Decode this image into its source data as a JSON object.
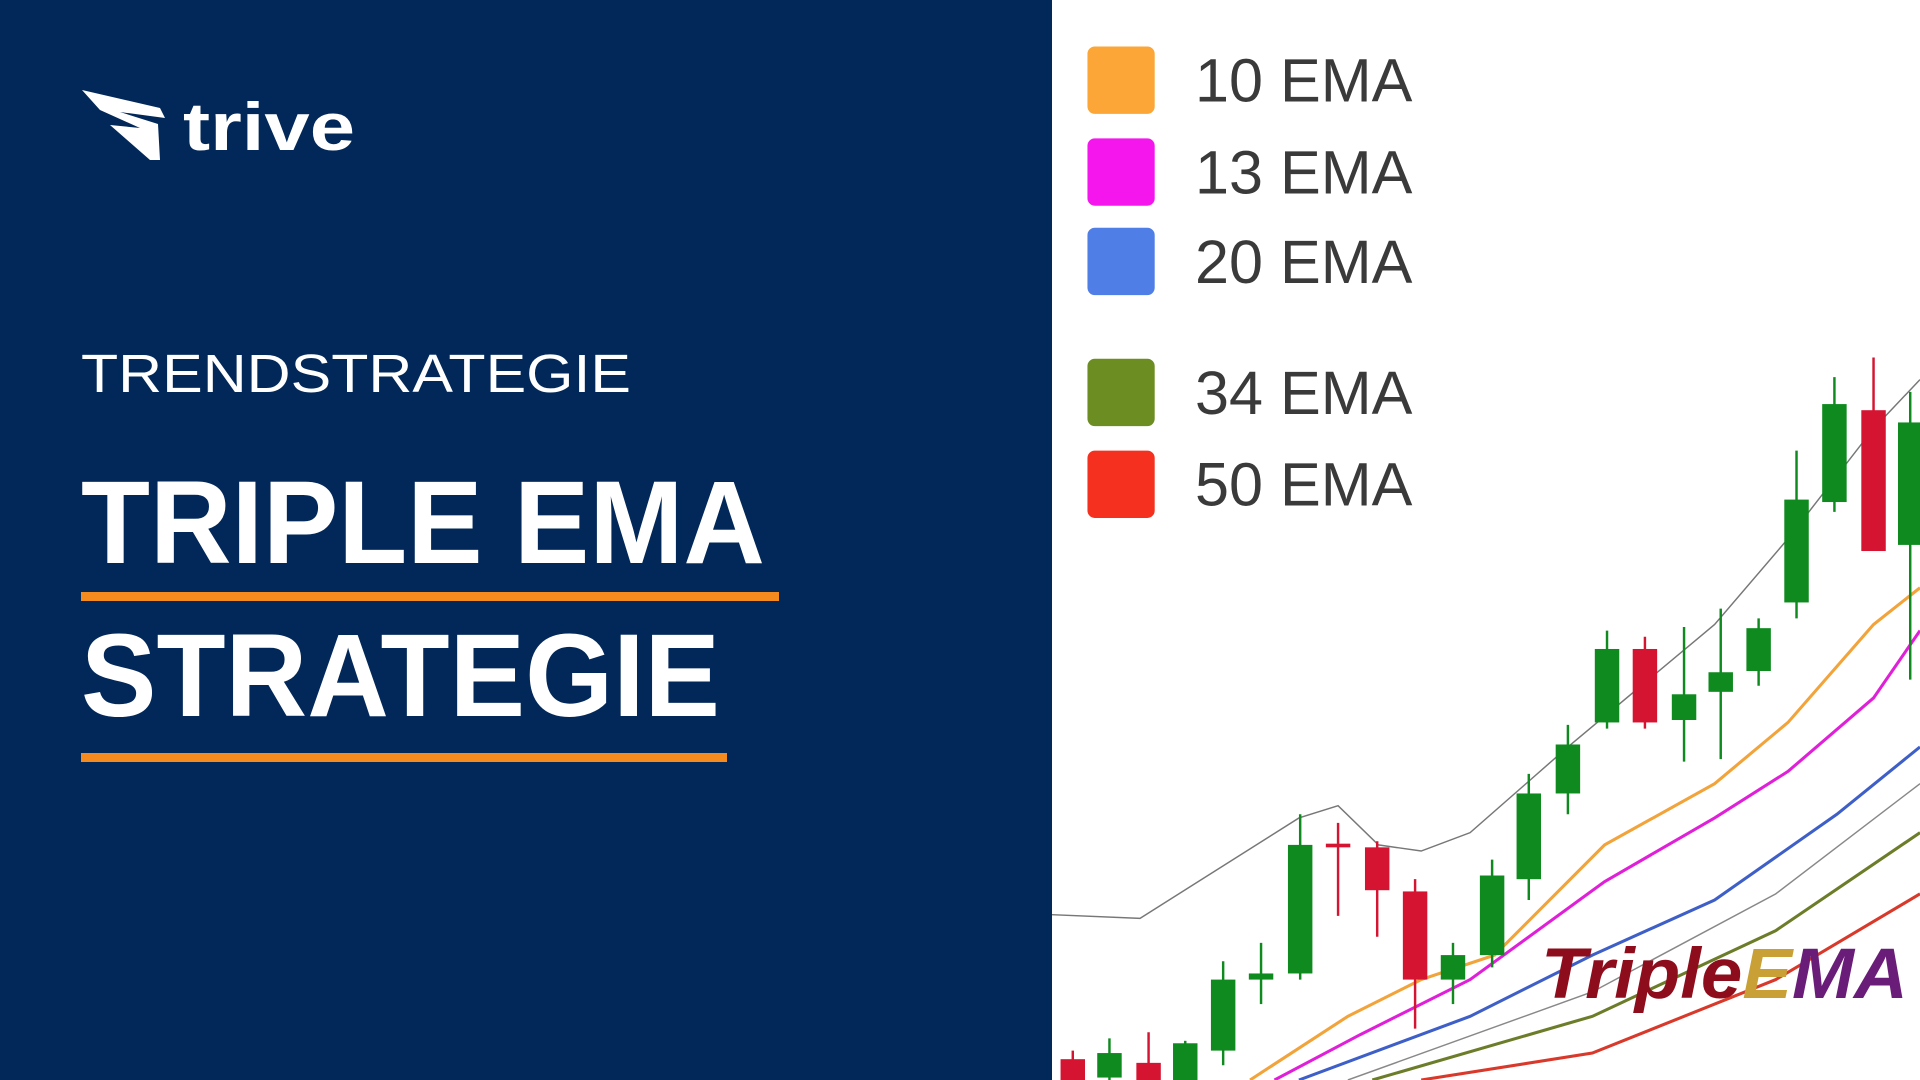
{
  "brand": "trive",
  "kicker": "TRENDSTRATEGIE",
  "title_lines": [
    "TRIPLE EMA",
    "STRATEGIE"
  ],
  "legend": [
    {
      "label": "10 EMA",
      "color": "#fba637"
    },
    {
      "label": "13 EMA",
      "color": "#f516ee"
    },
    {
      "label": "20 EMA",
      "color": "#4f7fe6"
    },
    {
      "label": "34 EMA",
      "color": "#6c8d22"
    },
    {
      "label": "50 EMA",
      "color": "#f5301f"
    }
  ],
  "watermark": [
    "Triple",
    "E",
    "MA"
  ]
}
